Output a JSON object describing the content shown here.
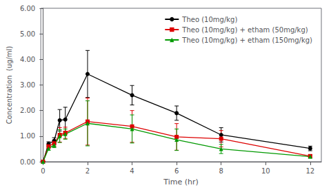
{
  "chart_data": {
    "type": "line",
    "xlabel": "Time (hr)",
    "ylabel": "Concentration  (ug/ml)",
    "x": [
      0,
      0.25,
      0.5,
      0.75,
      1.0,
      2.0,
      4.0,
      6.0,
      8.0,
      12.0
    ],
    "series": [
      {
        "name": "Theo (10mg/kg)",
        "color": "#000000",
        "marker": "circle",
        "values": [
          0.0,
          0.7,
          0.82,
          1.62,
          1.65,
          3.43,
          2.6,
          1.9,
          1.05,
          0.52
        ],
        "yerr": [
          0.0,
          0.08,
          0.12,
          0.42,
          0.48,
          0.92,
          0.38,
          0.28,
          0.28,
          0.09
        ]
      },
      {
        "name": "Theo (10mg/kg) + etham (50mg/kg)",
        "color": "#dd0000",
        "marker": "square",
        "values": [
          0.0,
          0.6,
          0.72,
          1.05,
          1.13,
          1.57,
          1.38,
          0.97,
          0.9,
          0.22
        ],
        "yerr": [
          0.0,
          0.08,
          0.12,
          0.28,
          0.22,
          0.92,
          0.62,
          0.52,
          0.32,
          0.06
        ]
      },
      {
        "name": "Theo (10mg/kg) + etham (150mg/kg)",
        "color": "#009900",
        "marker": "triangle",
        "values": [
          0.0,
          0.52,
          0.65,
          1.0,
          1.08,
          1.5,
          1.28,
          0.86,
          0.5,
          0.2
        ],
        "yerr": [
          0.0,
          0.07,
          0.1,
          0.25,
          0.2,
          0.88,
          0.55,
          0.42,
          0.18,
          0.06
        ]
      }
    ],
    "xlim": [
      -0.1,
      12.5
    ],
    "ylim": [
      0.0,
      6.0
    ],
    "xticks": [
      0,
      2,
      4,
      6,
      8,
      10,
      12
    ],
    "yticks": [
      {
        "value": 0,
        "label": "0.00"
      },
      {
        "value": 1,
        "label": "1.00"
      },
      {
        "value": 2,
        "label": "2.00"
      },
      {
        "value": 3,
        "label": "3.00"
      },
      {
        "value": 4,
        "label": "4.00"
      },
      {
        "value": 5,
        "label": "5.00"
      },
      {
        "value": 6,
        "label": "6.00"
      }
    ],
    "grid": false,
    "legend": "upper right"
  }
}
